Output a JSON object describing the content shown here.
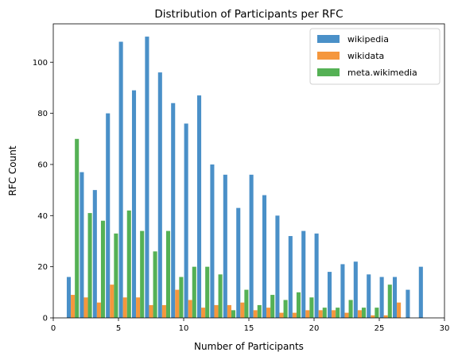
{
  "chart_data": {
    "type": "bar",
    "title": "Distribution of Participants per RFC",
    "xlabel": "Number of Participants",
    "ylabel": "RFC Count",
    "xlim": [
      0,
      30
    ],
    "ylim": [
      0,
      115
    ],
    "xticks": [
      0,
      5,
      10,
      15,
      20,
      25,
      30
    ],
    "yticks": [
      0,
      20,
      40,
      60,
      80,
      100
    ],
    "grid": false,
    "legend_position": "top-right",
    "x": [
      1,
      2,
      3,
      4,
      5,
      6,
      7,
      8,
      9,
      10,
      11,
      12,
      13,
      14,
      15,
      16,
      17,
      18,
      19,
      20,
      21,
      22,
      23,
      24,
      25,
      26,
      27,
      28
    ],
    "series": [
      {
        "name": "wikipedia",
        "color": "#4a90c8",
        "values": [
          16,
          57,
          50,
          80,
          108,
          89,
          110,
          96,
          84,
          76,
          87,
          60,
          56,
          43,
          56,
          48,
          40,
          32,
          34,
          33,
          18,
          21,
          22,
          17,
          16,
          16,
          11,
          20
        ]
      },
      {
        "name": "wikidata",
        "color": "#f5973d",
        "values": [
          9,
          8,
          6,
          13,
          8,
          8,
          5,
          5,
          11,
          7,
          4,
          5,
          5,
          6,
          3,
          4,
          2,
          2,
          3,
          3,
          3,
          2,
          3,
          1,
          1,
          6,
          0,
          0
        ]
      },
      {
        "name": "meta.wikimedia",
        "color": "#55b155",
        "values": [
          70,
          41,
          38,
          33,
          42,
          34,
          26,
          34,
          16,
          20,
          20,
          17,
          3,
          11,
          5,
          9,
          7,
          10,
          8,
          4,
          4,
          7,
          4,
          4,
          13,
          0,
          0,
          0
        ]
      }
    ]
  }
}
